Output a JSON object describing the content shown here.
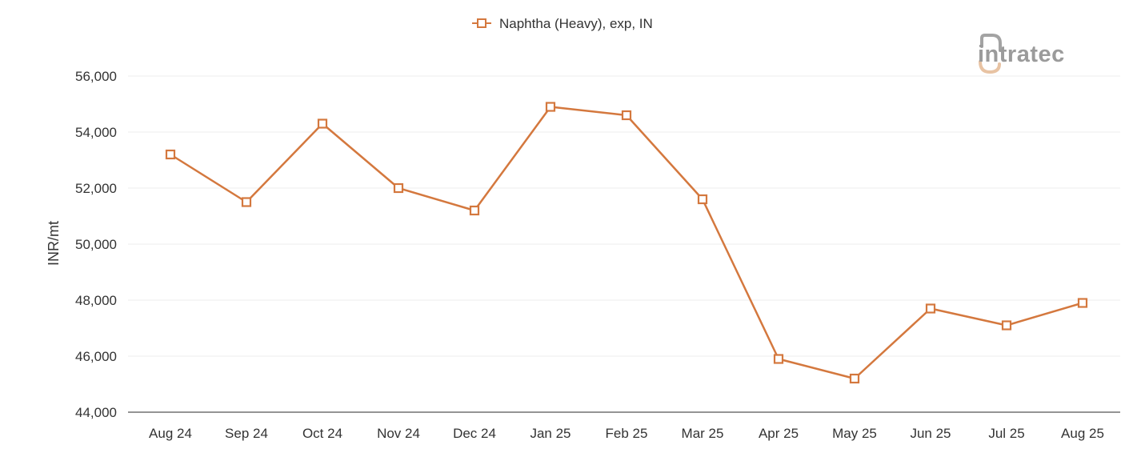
{
  "chart_data": {
    "type": "line",
    "categories": [
      "Aug 24",
      "Sep 24",
      "Oct 24",
      "Nov 24",
      "Dec 24",
      "Jan 25",
      "Feb 25",
      "Mar 25",
      "Apr 25",
      "May 25",
      "Jun 25",
      "Jul 25",
      "Aug 25"
    ],
    "series": [
      {
        "name": "Naphtha (Heavy), exp, IN",
        "color": "#d4783e",
        "marker": "square-open",
        "values": [
          53200,
          51500,
          54300,
          52000,
          51200,
          54900,
          54600,
          51600,
          45900,
          45200,
          47700,
          47100,
          47900
        ]
      }
    ],
    "title": "",
    "xlabel": "",
    "ylabel": "INR/mt",
    "ylim": [
      44000,
      56000
    ],
    "yticks": [
      44000,
      46000,
      48000,
      50000,
      52000,
      54000,
      56000
    ],
    "ytick_labels": [
      "44,000",
      "46,000",
      "48,000",
      "50,000",
      "52,000",
      "54,000",
      "56,000"
    ],
    "grid": true,
    "legend_position": "top-center"
  },
  "logo": {
    "text": "intratec",
    "color": "#9b9b9b",
    "accent": "#e8c3a3"
  }
}
